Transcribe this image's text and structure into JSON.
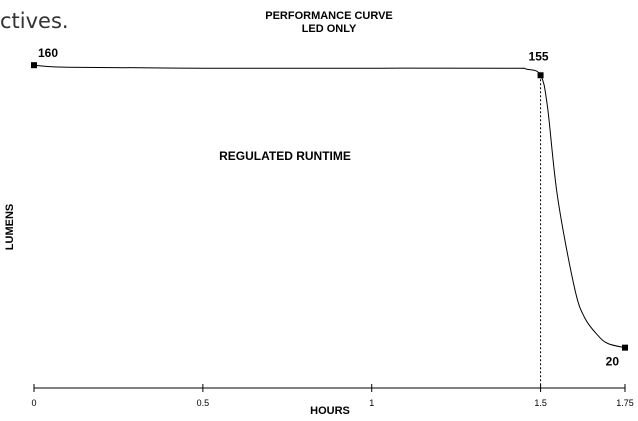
{
  "page": {
    "fragment_text": "ctives."
  },
  "chart_data": {
    "type": "line",
    "title": "PERFORMANCE CURVE",
    "subtitle": "LED ONLY",
    "xlabel": "HOURS",
    "ylabel": "LUMENS",
    "xlim": [
      0,
      1.75
    ],
    "ylim": [
      0,
      170
    ],
    "x_ticks": [
      "0",
      "0.5",
      "1",
      "1.5",
      "1.75"
    ],
    "x_tick_values": [
      0,
      0.5,
      1,
      1.5,
      1.75
    ],
    "grid": false,
    "legend": "none",
    "annotation": "REGULATED RUNTIME",
    "series": [
      {
        "values_x": [
          0,
          0.1,
          0.5,
          1.0,
          1.4,
          1.46,
          1.5,
          1.52,
          1.55,
          1.6,
          1.63,
          1.67,
          1.7,
          1.75
        ],
        "values_y": [
          160,
          159,
          158.5,
          158.5,
          158.5,
          158,
          155,
          140,
          95,
          50,
          35,
          26,
          22,
          20
        ]
      }
    ],
    "markers": [
      {
        "x": 0,
        "y": 160,
        "label": "160"
      },
      {
        "x": 1.5,
        "y": 155,
        "label": "155"
      },
      {
        "x": 1.75,
        "y": 20,
        "label": "20"
      }
    ],
    "reference_lines": [
      {
        "x": 1.5
      }
    ],
    "colors": {
      "line": "#000000",
      "marker": "#000000"
    }
  }
}
